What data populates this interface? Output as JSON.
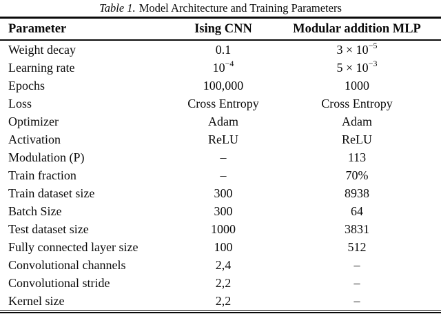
{
  "caption": {
    "label": "Table 1.",
    "title": "Model Architecture and Training Parameters"
  },
  "table": {
    "columns": {
      "param": "Parameter",
      "ising": "Ising CNN",
      "mlp": "Modular addition MLP"
    },
    "rows": [
      {
        "param": "Weight decay",
        "ising": {
          "pre": "0.1"
        },
        "mlp": {
          "pre": "3 × 10",
          "sup": "−5"
        }
      },
      {
        "param": "Learning rate",
        "ising": {
          "pre": "10",
          "sup": "−4"
        },
        "mlp": {
          "pre": "5 × 10",
          "sup": "−3"
        }
      },
      {
        "param": "Epochs",
        "ising": {
          "pre": "100,000"
        },
        "mlp": {
          "pre": "1000"
        }
      },
      {
        "param": "Loss",
        "ising": {
          "pre": "Cross Entropy"
        },
        "mlp": {
          "pre": "Cross Entropy"
        }
      },
      {
        "param": "Optimizer",
        "ising": {
          "pre": "Adam"
        },
        "mlp": {
          "pre": "Adam"
        }
      },
      {
        "param": "Activation",
        "ising": {
          "pre": "ReLU"
        },
        "mlp": {
          "pre": "ReLU"
        }
      },
      {
        "param": "Modulation (P)",
        "ising": {
          "pre": "–"
        },
        "mlp": {
          "pre": "113"
        }
      },
      {
        "param": "Train fraction",
        "ising": {
          "pre": "–"
        },
        "mlp": {
          "pre": "70%"
        }
      },
      {
        "param": "Train dataset size",
        "ising": {
          "pre": "300"
        },
        "mlp": {
          "pre": "8938"
        }
      },
      {
        "param": "Batch Size",
        "ising": {
          "pre": "300"
        },
        "mlp": {
          "pre": "64"
        }
      },
      {
        "param": "Test dataset size",
        "ising": {
          "pre": "1000"
        },
        "mlp": {
          "pre": "3831"
        }
      },
      {
        "param": "Fully connected layer size",
        "ising": {
          "pre": "100"
        },
        "mlp": {
          "pre": "512"
        }
      },
      {
        "param": "Convolutional channels",
        "ising": {
          "pre": "2,4"
        },
        "mlp": {
          "pre": "–"
        }
      },
      {
        "param": "Convolutional stride",
        "ising": {
          "pre": "2,2"
        },
        "mlp": {
          "pre": "–"
        }
      },
      {
        "param": "Kernel size",
        "ising": {
          "pre": "2,2"
        },
        "mlp": {
          "pre": "–"
        }
      }
    ]
  },
  "colors": {
    "text": "#0a0a0a",
    "background": "#ffffff",
    "rule": "#0a0a0a"
  }
}
